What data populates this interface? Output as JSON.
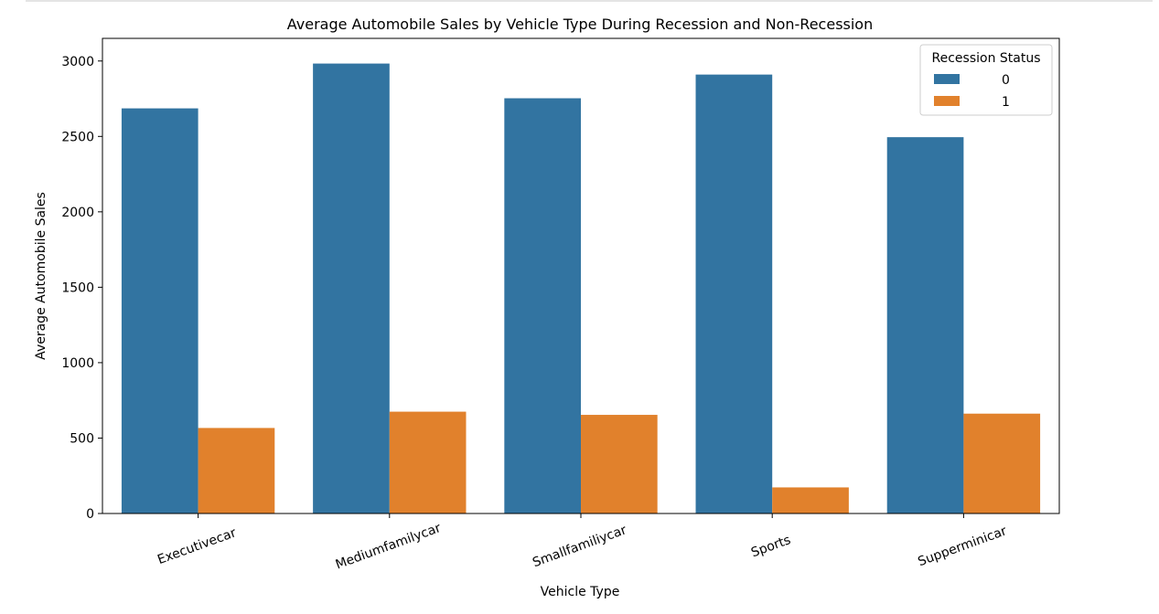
{
  "chart_data": {
    "type": "bar",
    "title": "Average Automobile Sales by Vehicle Type During Recession and Non-Recession",
    "xlabel": "Vehicle Type",
    "ylabel": "Average Automobile Sales",
    "categories": [
      "Executivecar",
      "Mediumfamilycar",
      "Smallfamiliycar",
      "Sports",
      "Supperminicar"
    ],
    "series": [
      {
        "name": "0",
        "color": "#3274a1",
        "values": [
          2686,
          2983,
          2753,
          2910,
          2495
        ]
      },
      {
        "name": "1",
        "color": "#e1812c",
        "values": [
          567,
          675,
          654,
          173,
          662
        ]
      }
    ],
    "ylim": [
      0,
      3150
    ],
    "yticks": [
      0,
      500,
      1000,
      1500,
      2000,
      2500,
      3000
    ],
    "x_tick_rotation_deg": -20,
    "legend": {
      "title": "Recession Status",
      "placement": "top-right"
    },
    "grid": false
  }
}
